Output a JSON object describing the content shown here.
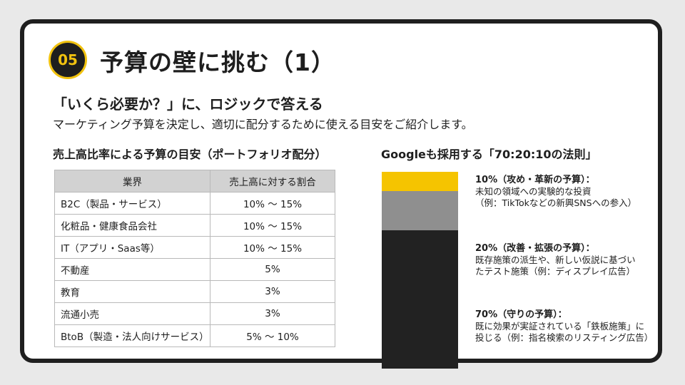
{
  "slide": {
    "number": "05",
    "title": "予算の壁に挑む（1）",
    "subtitle": "「いくら必要か？」に、ロジックで答える",
    "lead": "マーケティング予算を決定し、適切に配分するために使える目安をご紹介します。"
  },
  "left": {
    "section_title": "売上高比率による予算の目安（ポートフォリオ配分）",
    "table": {
      "headers": [
        "業界",
        "売上高に対する割合"
      ],
      "rows": [
        [
          "B2C（製品・サービス）",
          "10% ～ 15%"
        ],
        [
          "化粧品・健康食品会社",
          "10% ～ 15%"
        ],
        [
          "IT（アプリ・Saas等）",
          "10% ～ 15%"
        ],
        [
          "不動産",
          "5%"
        ],
        [
          "教育",
          "3%"
        ],
        [
          "流通小売",
          "3%"
        ],
        [
          "BtoB（製造・法人向けサービス）",
          "5% ～ 10%"
        ]
      ]
    }
  },
  "right": {
    "section_title": "Googleも採用する「70:20:10の法則」",
    "colors": {
      "innovation": "#f5c400",
      "improvement": "#8f8f8f",
      "core": "#222222"
    },
    "rules": [
      {
        "head": "10%（攻め・革新の予算）：",
        "lines": [
          "未知の領域への実験的な投資",
          "（例：TikTokなどの新興SNSへの参入）"
        ]
      },
      {
        "head": "20%（改善・拡張の予算）：",
        "lines": [
          "既存施策の派生や、新しい仮説に基づい",
          "たテスト施策（例：ディスプレイ広告）"
        ]
      },
      {
        "head": "70%（守りの予算）：",
        "lines": [
          "既に効果が実証されている「鉄板施策」に",
          "投じる（例：指名検索のリスティング広告）"
        ]
      }
    ]
  }
}
